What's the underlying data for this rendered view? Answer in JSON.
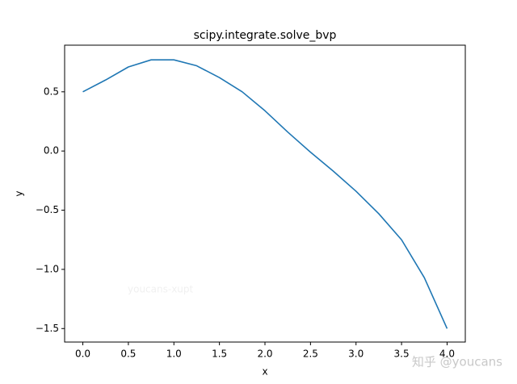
{
  "chart_data": {
    "type": "line",
    "title": "scipy.integrate.solve_bvp",
    "x_label": "x",
    "y_label": "y",
    "x": [
      0,
      0.25,
      0.5,
      0.75,
      1.0,
      1.25,
      1.5,
      1.75,
      2.0,
      2.25,
      2.5,
      2.75,
      3.0,
      3.25,
      3.5,
      3.75,
      4.0
    ],
    "values": [
      0.5,
      0.6,
      0.71,
      0.77,
      0.77,
      0.72,
      0.62,
      0.5,
      0.34,
      0.16,
      -0.01,
      -0.17,
      -0.34,
      -0.53,
      -0.75,
      -1.07,
      -1.5
    ],
    "color": "#1f77b4",
    "xlim": [
      -0.2,
      4.2
    ],
    "xticks": [
      {
        "value": 0,
        "label": "0.0"
      },
      {
        "value": 0.5,
        "label": "0.5"
      },
      {
        "value": 1,
        "label": "1.0"
      },
      {
        "value": 1.5,
        "label": "1.5"
      },
      {
        "value": 2,
        "label": "2.0"
      },
      {
        "value": 2.5,
        "label": "2.5"
      },
      {
        "value": 3,
        "label": "3.0"
      },
      {
        "value": 3.5,
        "label": "3.5"
      },
      {
        "value": 4,
        "label": "4.0"
      }
    ],
    "ylim": [
      -1.614,
      0.894
    ],
    "yticks": [
      {
        "value": -1.5,
        "label": "−1.5"
      },
      {
        "value": -1,
        "label": "−1.0"
      },
      {
        "value": -0.5,
        "label": "−0.5"
      },
      {
        "value": 0,
        "label": "0.0"
      },
      {
        "value": 0.5,
        "label": "0.5"
      }
    ],
    "grid": false,
    "annotations": [
      "youcans-xupt",
      "知乎 @youcans"
    ]
  }
}
